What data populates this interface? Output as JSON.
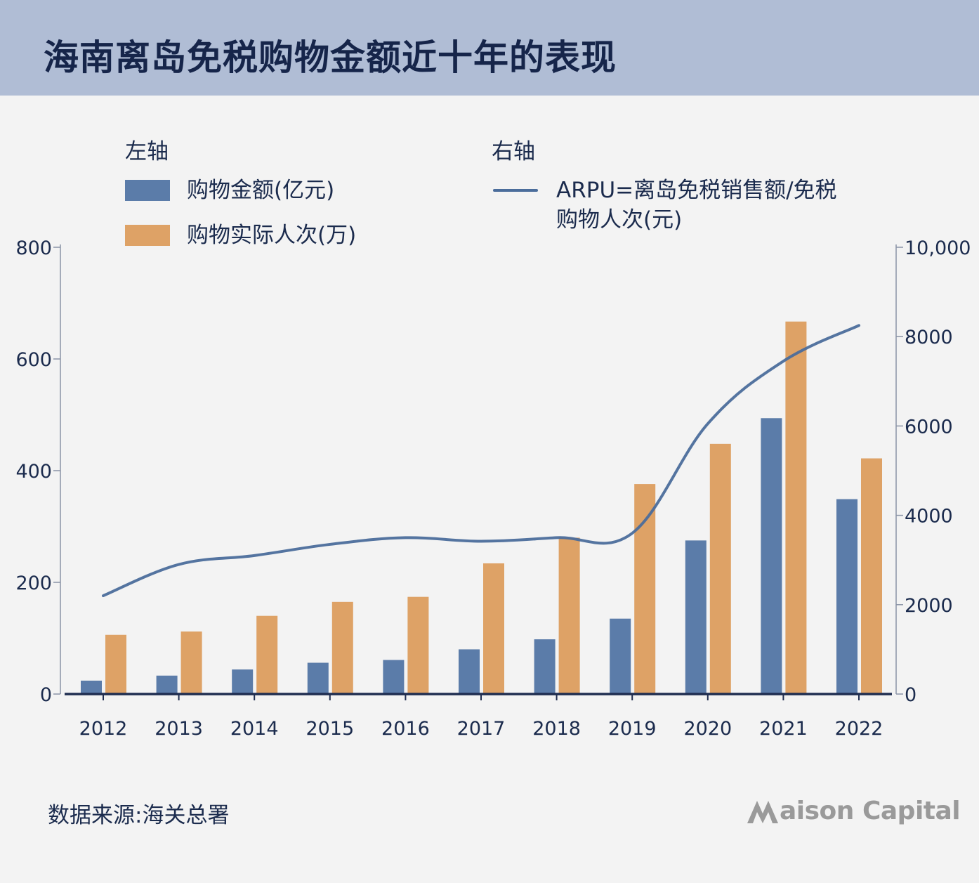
{
  "title": "海南离岛免税购物金额近十年的表现",
  "legend": {
    "left_heading": "左轴",
    "right_heading": "右轴",
    "items": [
      {
        "label": "购物金额(亿元)",
        "color": "#5b7ca9"
      },
      {
        "label": "购物实际人次(万)",
        "color": "#dea266"
      }
    ],
    "line_item": {
      "label": "ARPU=离岛免税销售额/免税购物人次(元)",
      "color": "#4b6d9b"
    }
  },
  "chart_data": {
    "type": "bar",
    "categories": [
      "2012",
      "2013",
      "2014",
      "2015",
      "2016",
      "2017",
      "2018",
      "2019",
      "2020",
      "2021",
      "2022"
    ],
    "series": [
      {
        "name": "购物金额(亿元)",
        "axis": "left",
        "type": "bar",
        "color": "#5b7ca9",
        "values": [
          24,
          33,
          44,
          56,
          61,
          80,
          98,
          135,
          275,
          494,
          349
        ]
      },
      {
        "name": "购物实际人次(万)",
        "axis": "left",
        "type": "bar",
        "color": "#dea266",
        "values": [
          106,
          112,
          140,
          165,
          174,
          234,
          280,
          376,
          448,
          667,
          422
        ]
      },
      {
        "name": "ARPU=离岛免税销售额/免税购物人次(元)",
        "axis": "right",
        "type": "line",
        "color": "#4b6d9b",
        "values": [
          2200,
          2900,
          3100,
          3350,
          3500,
          3420,
          3500,
          3600,
          6050,
          7450,
          8250
        ]
      }
    ],
    "left_axis": {
      "ticks": [
        "800",
        "600",
        "400",
        "200",
        "0"
      ],
      "ylim": [
        0,
        800
      ]
    },
    "right_axis": {
      "ticks": [
        "10,000",
        "8000",
        "6000",
        "4000",
        "2000",
        "0"
      ],
      "ylim": [
        0,
        10000
      ]
    },
    "grid": false
  },
  "footer": {
    "source": "数据来源:海关总署",
    "logo_text": "aison Capital"
  }
}
